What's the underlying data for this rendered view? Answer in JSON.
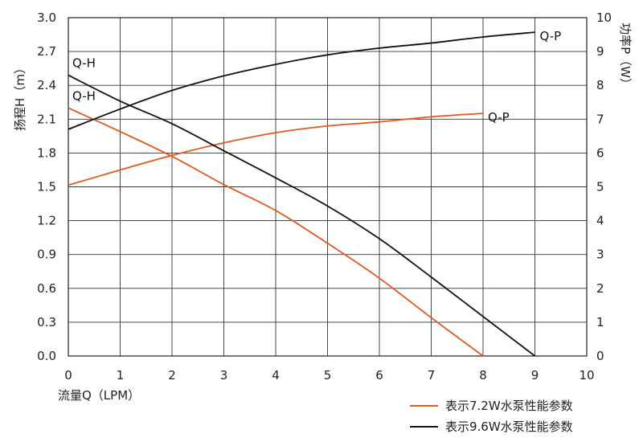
{
  "chart_data": {
    "type": "line",
    "xlabel": "流量Q（LPM）",
    "ylabel_left": "扬程H（m）",
    "ylabel_right": "功率P（W）",
    "xlim": [
      0,
      10
    ],
    "ylim_left": [
      0,
      3.0
    ],
    "ylim_right": [
      0,
      10
    ],
    "x_ticks": [
      "0",
      "1",
      "2",
      "3",
      "4",
      "5",
      "6",
      "7",
      "8",
      "9",
      "10"
    ],
    "y_left_ticks": [
      "0.0",
      "0.3",
      "0.6",
      "0.9",
      "1.2",
      "1.5",
      "1.8",
      "2.1",
      "2.4",
      "2.7",
      "3.0"
    ],
    "y_right_ticks": [
      "0",
      "1",
      "2",
      "3",
      "4",
      "5",
      "6",
      "7",
      "8",
      "9",
      "10"
    ],
    "grid": true,
    "legend_position": "bottom-right",
    "colors": {
      "orange": "#e05a1e",
      "black": "#111111"
    },
    "series": [
      {
        "name": "Q-H",
        "group": "表示7.2W水泵性能参数",
        "axis": "left",
        "color": "#e05a1e",
        "x": [
          0,
          1,
          2,
          3,
          4,
          5,
          6,
          7,
          8
        ],
        "y": [
          2.2,
          1.99,
          1.77,
          1.52,
          1.29,
          1.0,
          0.69,
          0.34,
          0.0
        ]
      },
      {
        "name": "Q-P",
        "group": "表示7.2W水泵性能参数",
        "axis": "right",
        "color": "#e05a1e",
        "x": [
          0,
          1,
          2,
          3,
          4,
          5,
          6,
          7,
          8
        ],
        "y": [
          5.05,
          5.5,
          5.93,
          6.3,
          6.6,
          6.8,
          6.92,
          7.07,
          7.17
        ]
      },
      {
        "name": "Q-H",
        "group": "表示9.6W水泵性能参数",
        "axis": "left",
        "color": "#111111",
        "x": [
          0,
          1,
          2,
          3,
          4,
          5,
          6,
          7,
          8,
          9
        ],
        "y": [
          2.49,
          2.26,
          2.06,
          1.82,
          1.58,
          1.33,
          1.04,
          0.7,
          0.35,
          0.0
        ]
      },
      {
        "name": "Q-P",
        "group": "表示9.6W水泵性能参数",
        "axis": "right",
        "color": "#111111",
        "x": [
          0,
          1,
          2,
          3,
          4,
          5,
          6,
          7,
          8,
          9
        ],
        "y": [
          6.7,
          7.3,
          7.85,
          8.28,
          8.62,
          8.9,
          9.1,
          9.25,
          9.43,
          9.57
        ]
      }
    ],
    "curve_labels": [
      {
        "text": "Q-H",
        "series": 2
      },
      {
        "text": "Q-H",
        "series": 0
      },
      {
        "text": "Q-P",
        "series": 3
      },
      {
        "text": "Q-P",
        "series": 1
      }
    ],
    "legend": [
      {
        "label": "表示7.2W水泵性能参数",
        "color": "#e05a1e"
      },
      {
        "label": "表示9.6W水泵性能参数",
        "color": "#111111"
      }
    ]
  }
}
